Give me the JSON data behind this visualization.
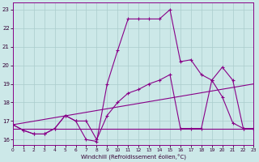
{
  "xlabel": "Windchill (Refroidissement éolien,°C)",
  "bg_color": "#cce8e8",
  "grid_color": "#aacccc",
  "line_color": "#880088",
  "xlim": [
    0,
    23
  ],
  "ylim": [
    15.7,
    23.4
  ],
  "yticks": [
    16,
    17,
    18,
    19,
    20,
    21,
    22,
    23
  ],
  "xticks": [
    0,
    1,
    2,
    3,
    4,
    5,
    6,
    7,
    8,
    9,
    10,
    11,
    12,
    13,
    14,
    15,
    16,
    17,
    18,
    19,
    20,
    21,
    22,
    23
  ],
  "line1_x": [
    0,
    1,
    2,
    3,
    4,
    5,
    6,
    7,
    8,
    9,
    10,
    11,
    12,
    13,
    14,
    15,
    16,
    17,
    18,
    19,
    20,
    21,
    22,
    23
  ],
  "line1_y": [
    16.8,
    16.5,
    16.3,
    16.3,
    16.6,
    17.3,
    17.0,
    16.0,
    15.9,
    19.0,
    20.8,
    22.5,
    22.5,
    22.5,
    22.5,
    23.0,
    20.2,
    20.3,
    19.5,
    19.2,
    18.3,
    16.9,
    16.6,
    16.6
  ],
  "line2_x": [
    0,
    1,
    2,
    3,
    4,
    5,
    6,
    7,
    8,
    9,
    10,
    11,
    12,
    13,
    14,
    15,
    16,
    17,
    18,
    19,
    20,
    21,
    22,
    23
  ],
  "line2_y": [
    16.8,
    16.5,
    16.3,
    16.3,
    16.6,
    17.3,
    17.0,
    17.0,
    16.0,
    17.3,
    18.0,
    18.5,
    18.7,
    19.0,
    19.2,
    19.5,
    16.6,
    16.6,
    16.6,
    19.2,
    19.9,
    19.2,
    16.6,
    16.6
  ],
  "line3_x": [
    0,
    23
  ],
  "line3_y": [
    16.8,
    19.0
  ],
  "line4_x": [
    0,
    23
  ],
  "line4_y": [
    16.6,
    16.6
  ]
}
